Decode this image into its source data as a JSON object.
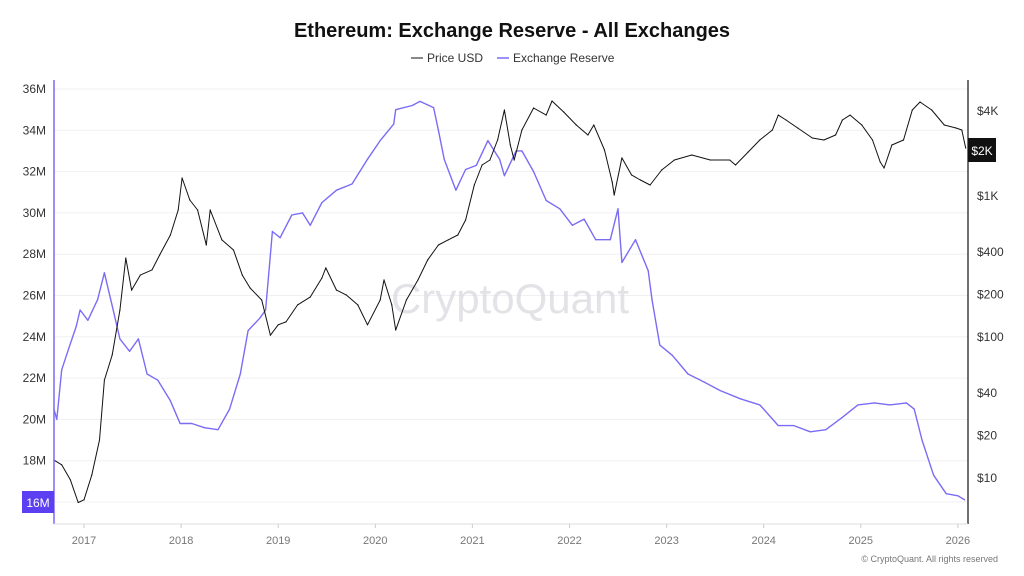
{
  "chart_data": {
    "type": "line",
    "title": "Ethereum: Exchange Reserve - All Exchanges",
    "legend_position": "top-center",
    "grid": true,
    "watermark": "CryptoQuant",
    "footer": "© CryptoQuant. All rights reserved",
    "x_ticks": [
      "2017",
      "2018",
      "2019",
      "2020",
      "2021",
      "2022",
      "2023",
      "2024",
      "2025",
      "2026"
    ],
    "x_range": [
      2016.69,
      2026.09
    ],
    "left_axis": {
      "ticks": [
        "36M",
        "34M",
        "32M",
        "30M",
        "28M",
        "26M",
        "24M",
        "22M",
        "20M",
        "18M"
      ],
      "tick_values": [
        36,
        34,
        32,
        30,
        28,
        26,
        24,
        22,
        20,
        18
      ],
      "range": [
        14.9,
        36.4
      ],
      "current_label": "16M"
    },
    "right_axis": {
      "scale": "log",
      "ticks": [
        "$4K",
        "$1K",
        "$400",
        "$200",
        "$100",
        "$40",
        "$20",
        "$10"
      ],
      "tick_values": [
        4000,
        1000,
        400,
        200,
        100,
        40,
        20,
        10
      ],
      "current_label": "$2K"
    },
    "series": [
      {
        "name": "Price USD",
        "axis": "right",
        "color": "#111111",
        "x": [
          2016.69,
          2016.77,
          2016.86,
          2016.94,
          2017.0,
          2017.08,
          2017.16,
          2017.21,
          2017.29,
          2017.37,
          2017.43,
          2017.49,
          2017.58,
          2017.7,
          2017.78,
          2017.89,
          2017.97,
          2018.01,
          2018.09,
          2018.17,
          2018.26,
          2018.3,
          2018.42,
          2018.54,
          2018.63,
          2018.71,
          2018.83,
          2018.92,
          2019.0,
          2019.08,
          2019.2,
          2019.33,
          2019.45,
          2019.49,
          2019.6,
          2019.7,
          2019.82,
          2019.92,
          2020.05,
          2020.09,
          2020.17,
          2020.21,
          2020.32,
          2020.44,
          2020.54,
          2020.65,
          2020.75,
          2020.85,
          2020.93,
          2021.02,
          2021.1,
          2021.18,
          2021.26,
          2021.33,
          2021.39,
          2021.43,
          2021.51,
          2021.63,
          2021.76,
          2021.82,
          2021.94,
          2022.07,
          2022.19,
          2022.25,
          2022.36,
          2022.44,
          2022.46,
          2022.54,
          2022.64,
          2022.73,
          2022.83,
          2022.95,
          2023.08,
          2023.26,
          2023.45,
          2023.65,
          2023.71,
          2023.84,
          2023.96,
          2024.09,
          2024.15,
          2024.23,
          2024.35,
          2024.5,
          2024.62,
          2024.74,
          2024.81,
          2024.89,
          2025.01,
          2025.12,
          2025.2,
          2025.24,
          2025.32,
          2025.44,
          2025.53,
          2025.61,
          2025.73,
          2025.86,
          2025.98,
          2026.04,
          2026.08
        ],
        "values": [
          13.4,
          12.4,
          9.7,
          6.7,
          7.0,
          10.5,
          18.6,
          49.5,
          74.5,
          155,
          363,
          215,
          275,
          299,
          382,
          529,
          796,
          1342,
          937,
          796,
          449,
          796,
          488,
          414,
          275,
          223,
          183,
          103,
          122,
          128,
          169,
          192,
          262,
          309,
          215,
          199,
          169,
          122,
          183,
          254,
          169,
          112,
          183,
          254,
          352,
          449,
          488,
          529,
          676,
          1197,
          1660,
          1799,
          2495,
          4074,
          2301,
          1799,
          2938,
          4207,
          3750,
          4721,
          3945,
          3190,
          2708,
          3190,
          2120,
          1257,
          1016,
          1862,
          1409,
          1298,
          1197,
          1529,
          1799,
          1954,
          1799,
          1799,
          1660,
          2051,
          2495,
          2938,
          3750,
          3459,
          3036,
          2577,
          2495,
          2708,
          3459,
          3750,
          3190,
          2495,
          1742,
          1580,
          2301,
          2495,
          4074,
          4645,
          4074,
          3190,
          3036,
          2938,
          2188
        ]
      },
      {
        "name": "Exchange Reserve",
        "axis": "left",
        "color": "#7b6cf6",
        "x": [
          2016.69,
          2016.72,
          2016.77,
          2016.84,
          2016.92,
          2016.96,
          2017.04,
          2017.14,
          2017.21,
          2017.29,
          2017.37,
          2017.47,
          2017.56,
          2017.65,
          2017.76,
          2017.89,
          2017.99,
          2018.11,
          2018.24,
          2018.38,
          2018.5,
          2018.61,
          2018.69,
          2018.81,
          2018.87,
          2018.94,
          2019.02,
          2019.14,
          2019.25,
          2019.33,
          2019.45,
          2019.6,
          2019.76,
          2019.92,
          2020.05,
          2020.19,
          2020.21,
          2020.38,
          2020.46,
          2020.6,
          2020.65,
          2020.71,
          2020.83,
          2020.93,
          2021.04,
          2021.16,
          2021.28,
          2021.33,
          2021.45,
          2021.51,
          2021.63,
          2021.76,
          2021.9,
          2022.03,
          2022.15,
          2022.27,
          2022.42,
          2022.5,
          2022.54,
          2022.68,
          2022.81,
          2022.85,
          2022.93,
          2023.06,
          2023.22,
          2023.39,
          2023.55,
          2023.76,
          2023.96,
          2024.15,
          2024.31,
          2024.48,
          2024.64,
          2024.81,
          2024.97,
          2025.14,
          2025.3,
          2025.47,
          2025.55,
          2025.63,
          2025.75,
          2025.88,
          2026.0,
          2026.07
        ],
        "values": [
          20.5,
          20.0,
          22.4,
          23.4,
          24.5,
          25.3,
          24.8,
          25.8,
          27.1,
          25.5,
          23.9,
          23.3,
          23.9,
          22.2,
          21.9,
          20.9,
          19.8,
          19.8,
          19.6,
          19.5,
          20.5,
          22.2,
          24.3,
          24.9,
          25.3,
          29.1,
          28.8,
          29.9,
          30.0,
          29.4,
          30.5,
          31.1,
          31.4,
          32.6,
          33.5,
          34.3,
          35.0,
          35.2,
          35.4,
          35.1,
          34.0,
          32.6,
          31.1,
          32.1,
          32.3,
          33.5,
          32.6,
          31.8,
          33.0,
          33.0,
          32.0,
          30.6,
          30.2,
          29.4,
          29.7,
          28.7,
          28.7,
          30.2,
          27.6,
          28.7,
          27.2,
          25.8,
          23.6,
          23.1,
          22.2,
          21.8,
          21.4,
          21.0,
          20.7,
          19.7,
          19.7,
          19.4,
          19.5,
          20.1,
          20.7,
          20.8,
          20.7,
          20.8,
          20.5,
          19.0,
          17.3,
          16.4,
          16.3,
          16.1
        ]
      }
    ]
  }
}
